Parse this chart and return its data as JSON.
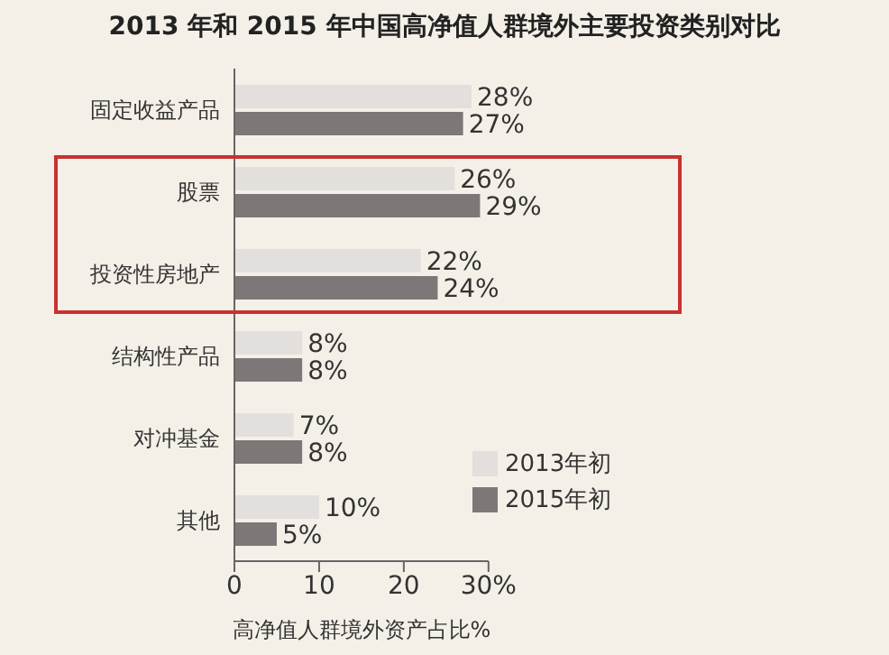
{
  "chart_data": {
    "type": "bar",
    "orientation": "horizontal",
    "title": "2013 年和 2015 年中国高净值人群境外主要投资类别对比",
    "xlabel": "高净值人群境外资产占比%",
    "categories": [
      "固定收益产品",
      "股票",
      "投资性房地产",
      "结构性产品",
      "对冲基金",
      "其他"
    ],
    "series": [
      {
        "name": "2013年初",
        "color": "#e3dfdd",
        "values": [
          28,
          26,
          22,
          8,
          7,
          10
        ],
        "value_labels": [
          "28%",
          "26%",
          "22%",
          "8%",
          "7%",
          "10%"
        ]
      },
      {
        "name": "2015年初",
        "color": "#7d7877",
        "values": [
          27,
          29,
          24,
          8,
          8,
          5
        ],
        "value_labels": [
          "27%",
          "29%",
          "24%",
          "8%",
          "8%",
          "5%"
        ]
      }
    ],
    "xlim": [
      0,
      30
    ],
    "xticks": [
      0,
      10,
      20,
      {
        "value": 30,
        "label": "30%"
      }
    ],
    "legend": "bottom right"
  }
}
